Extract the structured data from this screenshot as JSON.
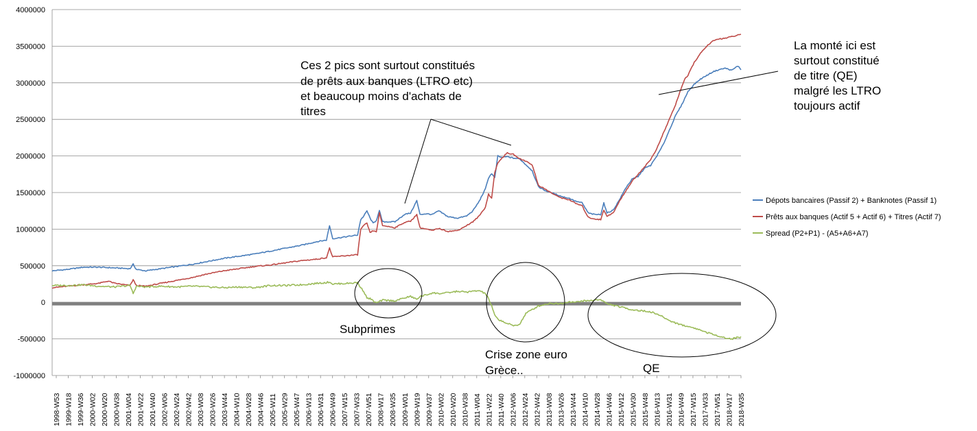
{
  "chart_data": {
    "type": "line",
    "title": "",
    "xlabel": "",
    "ylabel": "",
    "ylim": [
      -1000000,
      4000000
    ],
    "y_ticks": [
      "4000000",
      "3500000",
      "3000000",
      "2500000",
      "2000000",
      "1500000",
      "1000000",
      "500000",
      "0",
      "-500000",
      "-1000000"
    ],
    "x_tick_labels": [
      "1998-W53",
      "1999-W18",
      "1999-W36",
      "2000-W02",
      "2000-W20",
      "2000-W38",
      "2001-W04",
      "2001-W22",
      "2001-W40",
      "2002-W06",
      "2002-W24",
      "2002-W42",
      "2003-W08",
      "2003-W26",
      "2003-W44",
      "2004-W10",
      "2004-W28",
      "2004-W46",
      "2005-W11",
      "2005-W29",
      "2005-W47",
      "2006-W13",
      "2006-W31",
      "2006-W49",
      "2007-W15",
      "2007-W33",
      "2007-W51",
      "2008-W17",
      "2008-W35",
      "2009-W01",
      "2009-W19",
      "2009-W37",
      "2010-W02",
      "2010-W20",
      "2010-W38",
      "2011-W04",
      "2011-W22",
      "2011-W40",
      "2012-W06",
      "2012-W24",
      "2012-W42",
      "2013-W08",
      "2013-W26",
      "2013-W44",
      "2014-W10",
      "2014-W28",
      "2014-W46",
      "2015-W12",
      "2015-W30",
      "2015-W48",
      "2016-W13",
      "2016-W31",
      "2016-W49",
      "2017-W15",
      "2017-W33",
      "2017-W51",
      "2018-W17",
      "2018-W35"
    ],
    "grid": true,
    "legend_position": "right",
    "series": [
      {
        "name": "Dépots bancaires (Passif 2) + Banknotes (Passif 1)",
        "color": "#4a7ebb",
        "points": [
          [
            0,
            430000
          ],
          [
            5,
            450000
          ],
          [
            10,
            480000
          ],
          [
            15,
            480000
          ],
          [
            20,
            470000
          ],
          [
            25,
            460000
          ],
          [
            26,
            520000
          ],
          [
            27,
            450000
          ],
          [
            30,
            430000
          ],
          [
            35,
            460000
          ],
          [
            40,
            490000
          ],
          [
            45,
            520000
          ],
          [
            50,
            560000
          ],
          [
            55,
            600000
          ],
          [
            60,
            630000
          ],
          [
            65,
            660000
          ],
          [
            70,
            700000
          ],
          [
            75,
            740000
          ],
          [
            80,
            780000
          ],
          [
            85,
            830000
          ],
          [
            88,
            850000
          ],
          [
            89,
            1050000
          ],
          [
            90,
            870000
          ],
          [
            95,
            900000
          ],
          [
            98,
            920000
          ],
          [
            99,
            1130000
          ],
          [
            100,
            1180000
          ],
          [
            101,
            1250000
          ],
          [
            102,
            1150000
          ],
          [
            103,
            1080000
          ],
          [
            104,
            1120000
          ],
          [
            105,
            1250000
          ],
          [
            106,
            1100000
          ],
          [
            110,
            1100000
          ],
          [
            113,
            1200000
          ],
          [
            115,
            1220000
          ],
          [
            117,
            1390000
          ],
          [
            118,
            1200000
          ],
          [
            120,
            1210000
          ],
          [
            122,
            1200000
          ],
          [
            124,
            1250000
          ],
          [
            127,
            1170000
          ],
          [
            130,
            1150000
          ],
          [
            133,
            1180000
          ],
          [
            135,
            1250000
          ],
          [
            137,
            1380000
          ],
          [
            139,
            1550000
          ],
          [
            140,
            1700000
          ],
          [
            141,
            1760000
          ],
          [
            142,
            1700000
          ],
          [
            143,
            2000000
          ],
          [
            144,
            1980000
          ],
          [
            146,
            1990000
          ],
          [
            148,
            1970000
          ],
          [
            150,
            1960000
          ],
          [
            152,
            1880000
          ],
          [
            154,
            1800000
          ],
          [
            156,
            1580000
          ],
          [
            158,
            1530000
          ],
          [
            160,
            1500000
          ],
          [
            162,
            1470000
          ],
          [
            164,
            1440000
          ],
          [
            166,
            1420000
          ],
          [
            168,
            1380000
          ],
          [
            170,
            1360000
          ],
          [
            172,
            1220000
          ],
          [
            174,
            1200000
          ],
          [
            176,
            1200000
          ],
          [
            177,
            1360000
          ],
          [
            178,
            1220000
          ],
          [
            180,
            1260000
          ],
          [
            182,
            1400000
          ],
          [
            184,
            1560000
          ],
          [
            186,
            1680000
          ],
          [
            188,
            1720000
          ],
          [
            190,
            1830000
          ],
          [
            192,
            1870000
          ],
          [
            194,
            2000000
          ],
          [
            196,
            2150000
          ],
          [
            198,
            2350000
          ],
          [
            200,
            2550000
          ],
          [
            202,
            2700000
          ],
          [
            204,
            2880000
          ],
          [
            206,
            2980000
          ],
          [
            208,
            3050000
          ],
          [
            210,
            3100000
          ],
          [
            212,
            3150000
          ],
          [
            214,
            3180000
          ],
          [
            216,
            3200000
          ],
          [
            218,
            3170000
          ],
          [
            220,
            3230000
          ],
          [
            221,
            3180000
          ]
        ]
      },
      {
        "name": "Prêts aux banques (Actif 5 + Actif 6) + Titres (Actif 7)",
        "color": "#be4b48",
        "points": [
          [
            0,
            200000
          ],
          [
            5,
            220000
          ],
          [
            10,
            240000
          ],
          [
            15,
            260000
          ],
          [
            18,
            290000
          ],
          [
            20,
            260000
          ],
          [
            25,
            230000
          ],
          [
            26,
            310000
          ],
          [
            27,
            230000
          ],
          [
            30,
            220000
          ],
          [
            35,
            260000
          ],
          [
            40,
            300000
          ],
          [
            45,
            340000
          ],
          [
            50,
            390000
          ],
          [
            55,
            430000
          ],
          [
            60,
            460000
          ],
          [
            65,
            490000
          ],
          [
            70,
            510000
          ],
          [
            75,
            540000
          ],
          [
            80,
            570000
          ],
          [
            85,
            590000
          ],
          [
            88,
            610000
          ],
          [
            89,
            740000
          ],
          [
            90,
            620000
          ],
          [
            95,
            640000
          ],
          [
            98,
            650000
          ],
          [
            99,
            1000000
          ],
          [
            100,
            1050000
          ],
          [
            101,
            1080000
          ],
          [
            102,
            950000
          ],
          [
            103,
            980000
          ],
          [
            104,
            960000
          ],
          [
            105,
            1220000
          ],
          [
            106,
            1050000
          ],
          [
            110,
            1020000
          ],
          [
            113,
            1090000
          ],
          [
            115,
            1110000
          ],
          [
            117,
            1200000
          ],
          [
            118,
            1020000
          ],
          [
            120,
            1000000
          ],
          [
            122,
            980000
          ],
          [
            124,
            1010000
          ],
          [
            127,
            970000
          ],
          [
            130,
            980000
          ],
          [
            133,
            1050000
          ],
          [
            135,
            1100000
          ],
          [
            137,
            1180000
          ],
          [
            139,
            1300000
          ],
          [
            140,
            1480000
          ],
          [
            141,
            1420000
          ],
          [
            142,
            1780000
          ],
          [
            143,
            1900000
          ],
          [
            144,
            1960000
          ],
          [
            146,
            2040000
          ],
          [
            148,
            2020000
          ],
          [
            150,
            1960000
          ],
          [
            152,
            1930000
          ],
          [
            154,
            1880000
          ],
          [
            156,
            1600000
          ],
          [
            158,
            1550000
          ],
          [
            160,
            1500000
          ],
          [
            162,
            1450000
          ],
          [
            164,
            1420000
          ],
          [
            166,
            1400000
          ],
          [
            168,
            1350000
          ],
          [
            170,
            1320000
          ],
          [
            172,
            1160000
          ],
          [
            174,
            1140000
          ],
          [
            176,
            1130000
          ],
          [
            177,
            1260000
          ],
          [
            178,
            1180000
          ],
          [
            180,
            1220000
          ],
          [
            182,
            1380000
          ],
          [
            184,
            1520000
          ],
          [
            186,
            1650000
          ],
          [
            188,
            1750000
          ],
          [
            190,
            1850000
          ],
          [
            192,
            1950000
          ],
          [
            194,
            2100000
          ],
          [
            196,
            2300000
          ],
          [
            198,
            2500000
          ],
          [
            200,
            2700000
          ],
          [
            202,
            2950000
          ],
          [
            203,
            3050000
          ],
          [
            204,
            3100000
          ],
          [
            206,
            3280000
          ],
          [
            208,
            3400000
          ],
          [
            210,
            3500000
          ],
          [
            212,
            3570000
          ],
          [
            214,
            3600000
          ],
          [
            216,
            3610000
          ],
          [
            218,
            3630000
          ],
          [
            220,
            3650000
          ],
          [
            221,
            3660000
          ]
        ]
      },
      {
        "name": "Spread (P2+P1) - (A5+A6+A7)",
        "color": "#9bbb59",
        "points": [
          [
            0,
            230000
          ],
          [
            5,
            230000
          ],
          [
            10,
            240000
          ],
          [
            15,
            220000
          ],
          [
            20,
            210000
          ],
          [
            25,
            230000
          ],
          [
            26,
            120000
          ],
          [
            27,
            220000
          ],
          [
            30,
            210000
          ],
          [
            35,
            220000
          ],
          [
            40,
            210000
          ],
          [
            45,
            220000
          ],
          [
            50,
            210000
          ],
          [
            55,
            200000
          ],
          [
            60,
            210000
          ],
          [
            65,
            200000
          ],
          [
            70,
            230000
          ],
          [
            75,
            230000
          ],
          [
            80,
            240000
          ],
          [
            85,
            260000
          ],
          [
            88,
            270000
          ],
          [
            89,
            280000
          ],
          [
            90,
            250000
          ],
          [
            95,
            260000
          ],
          [
            98,
            270000
          ],
          [
            99,
            200000
          ],
          [
            100,
            150000
          ],
          [
            101,
            60000
          ],
          [
            102,
            50000
          ],
          [
            103,
            20000
          ],
          [
            104,
            -10000
          ],
          [
            105,
            10000
          ],
          [
            106,
            30000
          ],
          [
            110,
            20000
          ],
          [
            113,
            60000
          ],
          [
            115,
            80000
          ],
          [
            117,
            40000
          ],
          [
            118,
            80000
          ],
          [
            120,
            100000
          ],
          [
            122,
            130000
          ],
          [
            124,
            120000
          ],
          [
            127,
            130000
          ],
          [
            130,
            150000
          ],
          [
            133,
            140000
          ],
          [
            135,
            150000
          ],
          [
            137,
            160000
          ],
          [
            139,
            120000
          ],
          [
            140,
            50000
          ],
          [
            141,
            -50000
          ],
          [
            142,
            -180000
          ],
          [
            143,
            -230000
          ],
          [
            144,
            -250000
          ],
          [
            146,
            -290000
          ],
          [
            148,
            -320000
          ],
          [
            150,
            -300000
          ],
          [
            152,
            -150000
          ],
          [
            154,
            -100000
          ],
          [
            156,
            -50000
          ],
          [
            158,
            -30000
          ],
          [
            160,
            -10000
          ],
          [
            162,
            -20000
          ],
          [
            164,
            -10000
          ],
          [
            166,
            10000
          ],
          [
            168,
            0
          ],
          [
            170,
            20000
          ],
          [
            172,
            20000
          ],
          [
            174,
            30000
          ],
          [
            176,
            40000
          ],
          [
            177,
            10000
          ],
          [
            178,
            -20000
          ],
          [
            180,
            -40000
          ],
          [
            182,
            -60000
          ],
          [
            184,
            -80000
          ],
          [
            186,
            -100000
          ],
          [
            188,
            -110000
          ],
          [
            190,
            -120000
          ],
          [
            192,
            -130000
          ],
          [
            194,
            -160000
          ],
          [
            196,
            -200000
          ],
          [
            198,
            -250000
          ],
          [
            200,
            -280000
          ],
          [
            202,
            -310000
          ],
          [
            204,
            -330000
          ],
          [
            206,
            -350000
          ],
          [
            208,
            -380000
          ],
          [
            210,
            -410000
          ],
          [
            212,
            -440000
          ],
          [
            214,
            -460000
          ],
          [
            216,
            -490000
          ],
          [
            218,
            -500000
          ],
          [
            220,
            -480000
          ],
          [
            221,
            -470000
          ]
        ]
      }
    ],
    "annotations": {
      "pics_text": [
        "Ces 2 pics sont surtout constitués",
        "de prêts aux banques (LTRO etc)",
        "et beaucoup moins d'achats de",
        "titres"
      ],
      "qe_text": [
        "La monté ici est",
        "surtout constitué",
        "de titre (QE)",
        "malgré les LTRO",
        "toujours actif"
      ],
      "subprimes": "Subprimes",
      "crise": [
        "Crise zone euro",
        "Grèce.."
      ],
      "qe": "QE"
    }
  }
}
